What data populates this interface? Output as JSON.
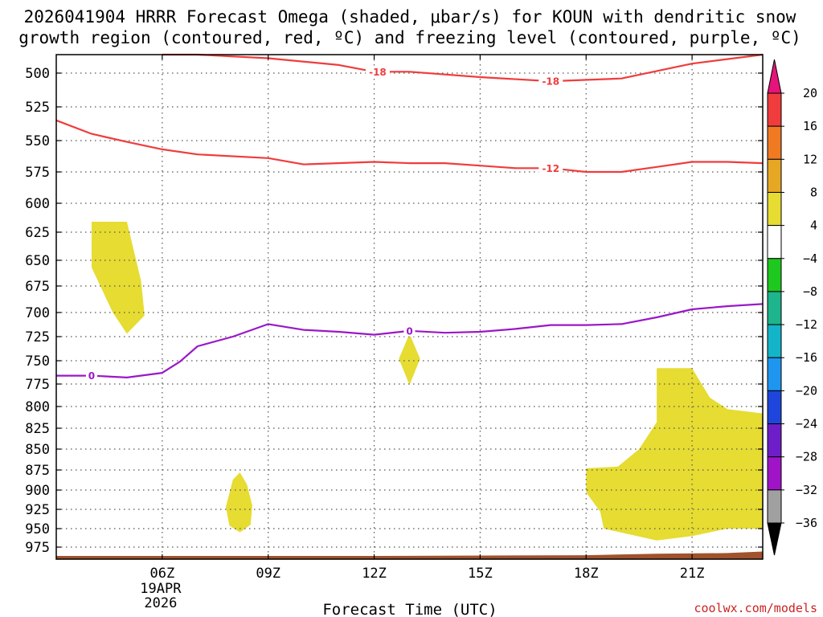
{
  "chart_data": {
    "type": "time-height",
    "title": "2026041904 HRRR Forecast Omega (shaded, μbar/s) for KOUN with dendritic snow growth region (contoured, red, ºC) and freezing level (contoured, purple, ºC)",
    "title_lines": [
      "2026041904 HRRR Forecast Omega (shaded, μbar/s) for KOUN with dendritic snow",
      "growth region (contoured, red, ºC) and freezing level (contoured, purple, ºC)"
    ],
    "xlabel": "Forecast Time (UTC)",
    "credit": "coolwx.com/models",
    "x_range_hours": [
      3,
      23
    ],
    "y_range_hpa": [
      475,
      990
    ],
    "grid": "dotted",
    "x_ticks": [
      {
        "hour": 6,
        "label": "06Z",
        "sub": [
          "19APR",
          "2026"
        ]
      },
      {
        "hour": 9,
        "label": "09Z",
        "sub": []
      },
      {
        "hour": 12,
        "label": "12Z",
        "sub": []
      },
      {
        "hour": 15,
        "label": "15Z",
        "sub": []
      },
      {
        "hour": 18,
        "label": "18Z",
        "sub": []
      },
      {
        "hour": 21,
        "label": "21Z",
        "sub": []
      }
    ],
    "y_ticks": [
      500,
      525,
      550,
      575,
      600,
      625,
      650,
      675,
      700,
      725,
      750,
      775,
      800,
      825,
      850,
      875,
      900,
      925,
      950,
      975
    ],
    "colorbar": {
      "units": "μbar/s",
      "labels": [
        "20",
        "16",
        "12",
        "8",
        "4",
        "−4",
        "−8",
        "−12",
        "−16",
        "−20",
        "−24",
        "−28",
        "−32",
        "−36"
      ],
      "bins": [
        {
          "lo": 16,
          "hi": 20,
          "color": "#f03c3c"
        },
        {
          "lo": 12,
          "hi": 16,
          "color": "#f07a22"
        },
        {
          "lo": 8,
          "hi": 12,
          "color": "#e6a824"
        },
        {
          "lo": 4,
          "hi": 8,
          "color": "#e6dc32"
        },
        {
          "lo": -4,
          "hi": 4,
          "color": "#ffffff"
        },
        {
          "lo": -8,
          "hi": -4,
          "color": "#1ec81e"
        },
        {
          "lo": -12,
          "hi": -8,
          "color": "#1eb48c"
        },
        {
          "lo": -16,
          "hi": -12,
          "color": "#14b4c8"
        },
        {
          "lo": -20,
          "hi": -16,
          "color": "#1e96f0"
        },
        {
          "lo": -24,
          "hi": -20,
          "color": "#1e46dc"
        },
        {
          "lo": -28,
          "hi": -24,
          "color": "#6e1ec8"
        },
        {
          "lo": -32,
          "hi": -28,
          "color": "#a014c8"
        },
        {
          "lo": -36,
          "hi": -32,
          "color": "#a0a0a0"
        }
      ],
      "top_arrow_color": "#e6147a",
      "bottom_arrow_color": "#000000"
    },
    "shaded_regions": [
      {
        "class": "4 to 8",
        "color": "#e6dc32",
        "points": [
          [
            4.0,
            616
          ],
          [
            5.0,
            616
          ],
          [
            5.4,
            670
          ],
          [
            5.5,
            703
          ],
          [
            5.0,
            722
          ],
          [
            4.6,
            700
          ],
          [
            4.0,
            657
          ]
        ]
      },
      {
        "class": "4 to 8",
        "color": "#e6dc32",
        "points": [
          [
            8.0,
            887
          ],
          [
            8.2,
            878
          ],
          [
            8.4,
            893
          ],
          [
            8.55,
            920
          ],
          [
            8.5,
            945
          ],
          [
            8.2,
            955
          ],
          [
            7.9,
            946
          ],
          [
            7.8,
            922
          ]
        ]
      },
      {
        "class": "4 to 8",
        "color": "#e6dc32",
        "points": [
          [
            13.0,
            722
          ],
          [
            13.3,
            748
          ],
          [
            13.0,
            776
          ],
          [
            12.7,
            748
          ]
        ]
      },
      {
        "class": "4 to 8",
        "color": "#e6dc32",
        "points": [
          [
            20.0,
            758
          ],
          [
            21.0,
            758
          ],
          [
            21.5,
            790
          ],
          [
            22.0,
            803
          ],
          [
            23.0,
            808
          ],
          [
            23.0,
            950
          ],
          [
            22.0,
            950
          ],
          [
            21.0,
            960
          ],
          [
            20.0,
            966
          ],
          [
            18.5,
            950
          ],
          [
            18.4,
            928
          ],
          [
            18.0,
            903
          ],
          [
            18.0,
            873
          ],
          [
            18.9,
            871
          ],
          [
            19.5,
            850
          ],
          [
            20.0,
            818
          ]
        ]
      }
    ],
    "series": [
      {
        "name": "-18",
        "color": "#f03c3c",
        "label_at_hours": [
          12.1,
          17.0
        ],
        "points": [
          [
            6.0,
            475
          ],
          [
            7.0,
            482
          ],
          [
            9.0,
            489
          ],
          [
            11.0,
            494
          ],
          [
            12.0,
            499
          ],
          [
            13.0,
            499
          ],
          [
            15.0,
            503
          ],
          [
            17.0,
            506
          ],
          [
            19.0,
            504
          ],
          [
            21.0,
            493
          ],
          [
            23.0,
            483
          ]
        ]
      },
      {
        "name": "-12",
        "color": "#f03c3c",
        "label_at_hours": [
          17.0
        ],
        "points": [
          [
            3.0,
            535
          ],
          [
            4.0,
            545
          ],
          [
            5.0,
            551
          ],
          [
            6.0,
            557
          ],
          [
            7.0,
            561
          ],
          [
            9.0,
            564
          ],
          [
            10.0,
            569
          ],
          [
            12.0,
            567
          ],
          [
            13.0,
            568
          ],
          [
            14.0,
            568
          ],
          [
            15.0,
            570
          ],
          [
            16.0,
            572
          ],
          [
            17.0,
            572
          ],
          [
            18.0,
            575
          ],
          [
            19.0,
            575
          ],
          [
            20.0,
            571
          ],
          [
            21.0,
            567
          ],
          [
            22.0,
            567
          ],
          [
            23.0,
            568
          ]
        ]
      },
      {
        "name": "0",
        "color": "#9a18c8",
        "label_at_hours": [
          4.0,
          13.0
        ],
        "points": [
          [
            3.0,
            766
          ],
          [
            4.0,
            766
          ],
          [
            5.0,
            768
          ],
          [
            6.0,
            763
          ],
          [
            6.5,
            751
          ],
          [
            7.0,
            735
          ],
          [
            8.0,
            725
          ],
          [
            9.0,
            712
          ],
          [
            10.0,
            718
          ],
          [
            11.0,
            720
          ],
          [
            12.0,
            723
          ],
          [
            13.0,
            719
          ],
          [
            14.0,
            721
          ],
          [
            15.0,
            720
          ],
          [
            16.0,
            717
          ],
          [
            17.0,
            713
          ],
          [
            18.0,
            713
          ],
          [
            19.0,
            712
          ],
          [
            20.0,
            705
          ],
          [
            21.0,
            697
          ],
          [
            22.0,
            694
          ],
          [
            23.0,
            692
          ]
        ]
      }
    ],
    "terrain": {
      "color": "#a0522d",
      "points": [
        [
          3.0,
          987
        ],
        [
          12.0,
          987
        ],
        [
          18.0,
          986
        ],
        [
          20.0,
          984
        ],
        [
          22.0,
          983
        ],
        [
          23.0,
          981
        ]
      ]
    }
  }
}
